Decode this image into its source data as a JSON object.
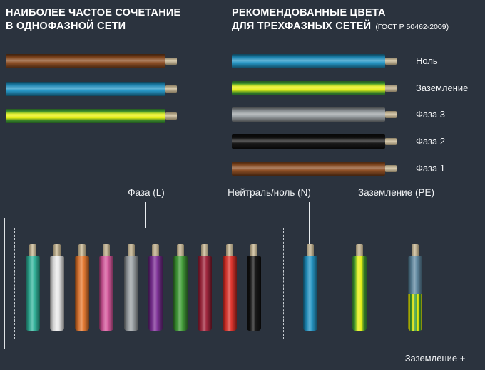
{
  "left_panel": {
    "title_line1": "НАИБОЛЕЕ ЧАСТОЕ СОЧЕТАНИЕ",
    "title_line2": "В ОДНОФАЗНОЙ СЕТИ",
    "wires": [
      "brown",
      "blue",
      "yellow-green"
    ]
  },
  "right_panel": {
    "title_line1": "РЕКОМЕНДОВАННЫЕ ЦВЕТА",
    "title_line2": "ДЛЯ ТРЕХФАЗНЫХ СЕТЕЙ",
    "title_note": "(ГОСТ Р 50462-2009)",
    "wires": [
      {
        "color": "blue",
        "label": "Ноль"
      },
      {
        "color": "yellow-green",
        "label": "Заземление"
      },
      {
        "color": "gray",
        "label": "Фаза 3"
      },
      {
        "color": "black",
        "label": "Фаза 2"
      },
      {
        "color": "brown",
        "label": "Фаза 1"
      }
    ]
  },
  "diagram": {
    "phase_label": "Фаза (L)",
    "neutral_label": "Нейтраль/ноль (N)",
    "earth_label": "Заземление (PE)",
    "earth_plus_label": "Заземление +",
    "phase_wires": [
      "teal",
      "white",
      "orange",
      "pink",
      "gray",
      "purple",
      "green",
      "maroon",
      "red",
      "black"
    ],
    "neutral_wire": "blue",
    "earth_wire": "yellow-green",
    "pen_wire_segments": [
      "blue",
      "yellow-green-striped"
    ]
  },
  "palette": {
    "background": "#2b333e",
    "tip": "#c9b78f",
    "brown": "#8a4a1e",
    "blue": "#1f93c4",
    "yellow": "#e6ee12",
    "green": "#3f9c35",
    "gray": "#9aa0a4",
    "black": "#101010",
    "teal": "#2eb39a",
    "white": "#e9e9e9",
    "orange": "#e5772d",
    "pink": "#d6559b",
    "purple": "#7c2d96",
    "maroon": "#9e2038",
    "red": "#de2f27",
    "pen_blue": "#5d87a0"
  }
}
